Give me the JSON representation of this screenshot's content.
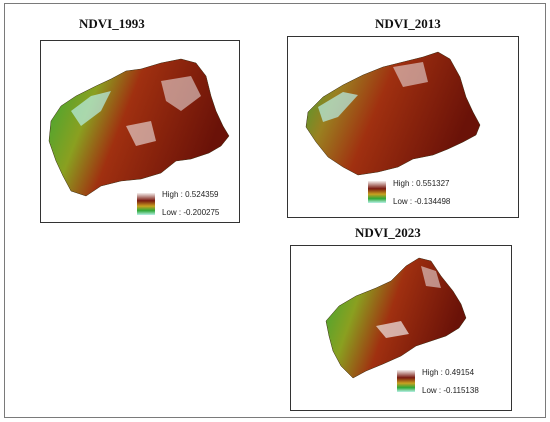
{
  "panels": [
    {
      "title": "NDVI_1993",
      "legend": {
        "high_label": "High : 0.524359",
        "low_label": "Low : -0.200275"
      }
    },
    {
      "title": "NDVI_2013",
      "legend": {
        "high_label": "High : 0.551327",
        "low_label": "Low : -0.134498"
      }
    },
    {
      "title": "NDVI_2023",
      "legend": {
        "high_label": "High : 0.49154",
        "low_label": "Low : -0.115138"
      }
    }
  ],
  "colors": {
    "high": "#f5f0ee",
    "upper": "#7a1a10",
    "mid": "#c8a020",
    "low_mid": "#2ea838",
    "low": "#b8f0e8"
  }
}
